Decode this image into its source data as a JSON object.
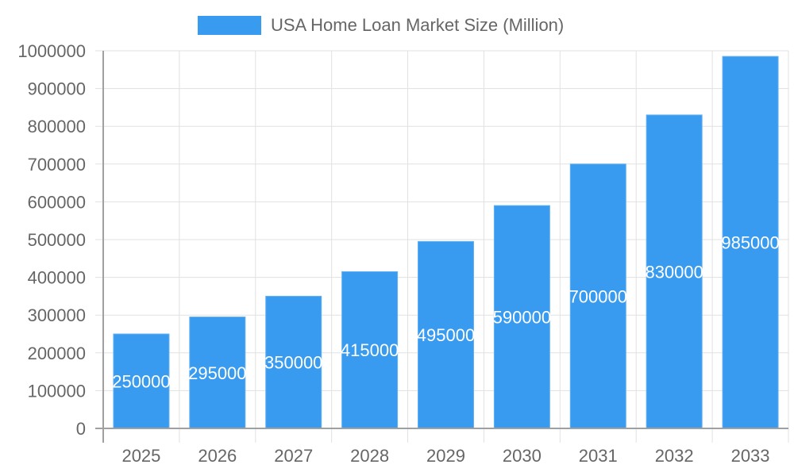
{
  "chart_data": {
    "type": "bar",
    "title": "",
    "xlabel": "",
    "ylabel": "",
    "categories": [
      "2025",
      "2026",
      "2027",
      "2028",
      "2029",
      "2030",
      "2031",
      "2032",
      "2033"
    ],
    "series": [
      {
        "name": "USA Home Loan Market Size (Million)",
        "color": "#389bef",
        "values": [
          250000,
          295000,
          350000,
          415000,
          495000,
          590000,
          700000,
          830000,
          985000
        ]
      }
    ],
    "data_labels": [
      "250000",
      "295000",
      "350000",
      "415000",
      "495000",
      "590000",
      "700000",
      "830000",
      "985000"
    ],
    "ylim": [
      0,
      1000000
    ],
    "y_ticks": [
      0,
      100000,
      200000,
      300000,
      400000,
      500000,
      600000,
      700000,
      800000,
      900000,
      1000000
    ],
    "y_tick_labels": [
      "0",
      "100000",
      "200000",
      "300000",
      "400000",
      "500000",
      "600000",
      "700000",
      "800000",
      "900000",
      "1000000"
    ],
    "grid": true,
    "legend_position": "top"
  },
  "legend": {
    "label": "USA Home Loan Market Size (Million)",
    "color": "#389bef"
  }
}
